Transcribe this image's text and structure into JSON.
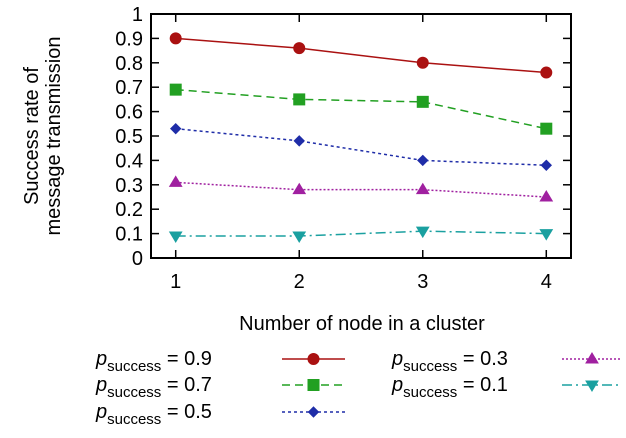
{
  "chart_data": {
    "type": "line",
    "title": "",
    "xlabel": "Number of node in a cluster",
    "ylabel_lines": [
      "Success rate of",
      "message transmission"
    ],
    "x": [
      1,
      2,
      3,
      4
    ],
    "xlim": [
      0.8,
      4.2
    ],
    "ylim": [
      0,
      1
    ],
    "x_ticks": [
      "1",
      "2",
      "3",
      "4"
    ],
    "y_ticks": [
      "0",
      "0.1",
      "0.2",
      "0.3",
      "0.4",
      "0.5",
      "0.6",
      "0.7",
      "0.8",
      "0.9",
      "1"
    ],
    "grid": false,
    "legend_position": "bottom",
    "series": [
      {
        "name": "p_success = 0.9",
        "legend_main": "p",
        "legend_sub": "success",
        "legend_value": " = 0.9",
        "values": [
          0.9,
          0.86,
          0.8,
          0.76
        ],
        "color": "#aa1111",
        "marker": "circle",
        "dash": ""
      },
      {
        "name": "p_success = 0.7",
        "legend_main": "p",
        "legend_sub": "success",
        "legend_value": " = 0.7",
        "values": [
          0.69,
          0.65,
          0.64,
          0.53
        ],
        "color": "#22a022",
        "marker": "square",
        "dash": "8,5"
      },
      {
        "name": "p_success = 0.5",
        "legend_main": "p",
        "legend_sub": "success",
        "legend_value": " = 0.5",
        "values": [
          0.53,
          0.48,
          0.4,
          0.38
        ],
        "color": "#1f2da8",
        "marker": "diamond",
        "dash": "3,3"
      },
      {
        "name": "p_success = 0.3",
        "legend_main": "p",
        "legend_sub": "success",
        "legend_value": " = 0.3",
        "values": [
          0.31,
          0.28,
          0.28,
          0.25
        ],
        "color": "#a020a0",
        "marker": "triangle-up",
        "dash": "2,2"
      },
      {
        "name": "p_success = 0.1",
        "legend_main": "p",
        "legend_sub": "success",
        "legend_value": " = 0.1",
        "values": [
          0.09,
          0.09,
          0.11,
          0.1
        ],
        "color": "#1aa0a0",
        "marker": "triangle-down",
        "dash": "10,4,2,4"
      }
    ]
  }
}
